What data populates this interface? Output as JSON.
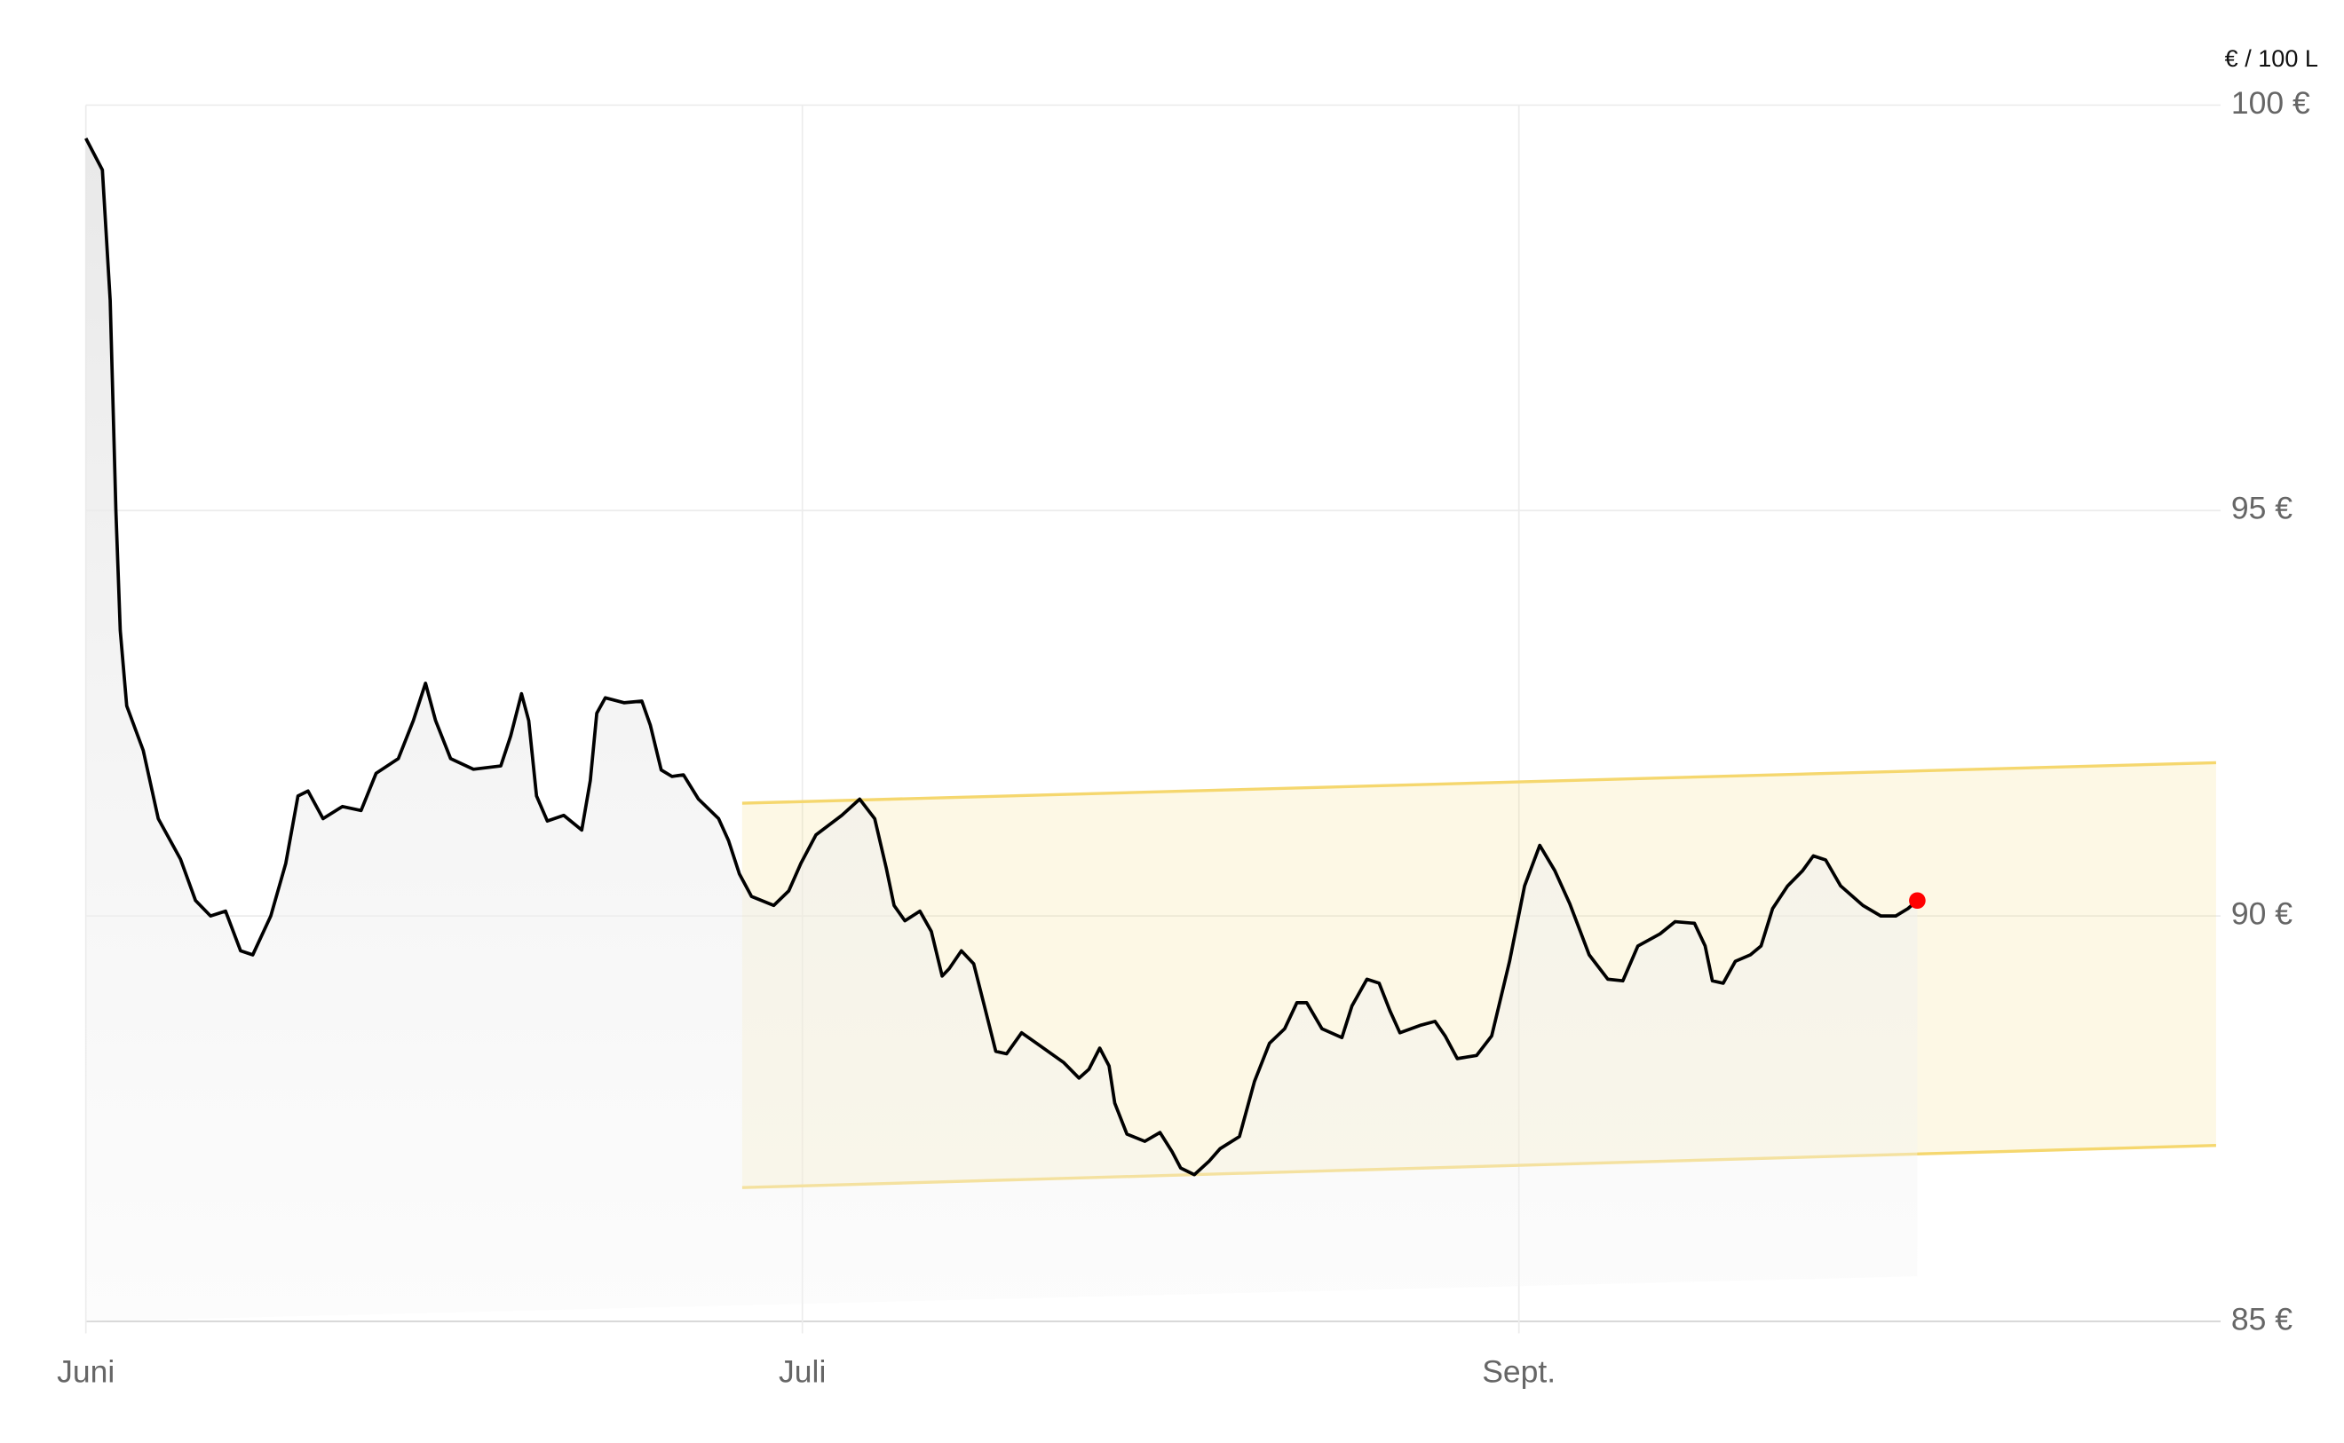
{
  "chart_data": {
    "type": "line",
    "unit_label": "€ / 100 L",
    "xlim": [
      0,
      2.973
    ],
    "xticks": [
      {
        "value": 0,
        "label": "Juni"
      },
      {
        "value": 1,
        "label": "Juli"
      },
      {
        "value": 2,
        "label": "Sept."
      }
    ],
    "ylim": [
      85,
      100
    ],
    "yticks": [
      {
        "value": 100,
        "label": "100 €"
      },
      {
        "value": 95,
        "label": "95 €"
      },
      {
        "value": 90,
        "label": "90 €"
      },
      {
        "value": 85,
        "label": "85 €"
      }
    ],
    "grid": true,
    "x": [
      0,
      0.023,
      0.034,
      0.042,
      0.048,
      0.057,
      0.08,
      0.101,
      0.132,
      0.153,
      0.174,
      0.195,
      0.216,
      0.233,
      0.258,
      0.279,
      0.296,
      0.31,
      0.331,
      0.358,
      0.384,
      0.405,
      0.436,
      0.457,
      0.474,
      0.488,
      0.509,
      0.541,
      0.579,
      0.593,
      0.608,
      0.618,
      0.629,
      0.644,
      0.667,
      0.692,
      0.704,
      0.713,
      0.725,
      0.751,
      0.776,
      0.788,
      0.803,
      0.818,
      0.834,
      0.855,
      0.883,
      0.897,
      0.912,
      0.929,
      0.96,
      0.981,
      0.998,
      1.019,
      1.055,
      1.08,
      1.101,
      1.117,
      1.128,
      1.143,
      1.164,
      1.18,
      1.195,
      1.205,
      1.222,
      1.239,
      1.254,
      1.27,
      1.285,
      1.306,
      1.327,
      1.365,
      1.386,
      1.4,
      1.415,
      1.428,
      1.436,
      1.453,
      1.478,
      1.499,
      1.516,
      1.528,
      1.547,
      1.568,
      1.583,
      1.61,
      1.631,
      1.652,
      1.673,
      1.69,
      1.704,
      1.725,
      1.753,
      1.767,
      1.788,
      1.805,
      1.82,
      1.834,
      1.862,
      1.883,
      1.897,
      1.914,
      1.941,
      1.962,
      1.987,
      2.008,
      2.029,
      2.05,
      2.071,
      2.098,
      2.124,
      2.145,
      2.166,
      2.197,
      2.218,
      2.245,
      2.26,
      2.27,
      2.285,
      2.302,
      2.323,
      2.338,
      2.354,
      2.375,
      2.396,
      2.411,
      2.428,
      2.449,
      2.48,
      2.505,
      2.526,
      2.543,
      2.556
    ],
    "series": [
      {
        "color": "#000000",
        "last_point_color": "#ff0000",
        "values": [
          99.59,
          99.2,
          97.59,
          95.0,
          93.52,
          92.59,
          92.04,
          91.2,
          90.7,
          90.19,
          90.0,
          90.06,
          89.57,
          89.52,
          90.0,
          90.65,
          91.48,
          91.54,
          91.2,
          91.35,
          91.3,
          91.76,
          91.94,
          92.41,
          92.87,
          92.41,
          91.94,
          91.81,
          91.85,
          92.22,
          92.74,
          92.41,
          91.48,
          91.17,
          91.24,
          91.06,
          91.67,
          92.5,
          92.69,
          92.63,
          92.65,
          92.35,
          91.8,
          91.72,
          91.74,
          91.44,
          91.2,
          90.93,
          90.52,
          90.24,
          90.13,
          90.31,
          90.65,
          91.0,
          91.24,
          91.44,
          91.2,
          90.59,
          90.13,
          89.94,
          90.06,
          89.81,
          89.26,
          89.35,
          89.57,
          89.41,
          88.89,
          88.33,
          88.3,
          88.56,
          88.43,
          88.19,
          88.0,
          88.11,
          88.37,
          88.15,
          87.69,
          87.31,
          87.22,
          87.33,
          87.09,
          86.89,
          86.81,
          86.98,
          87.13,
          87.28,
          87.96,
          88.43,
          88.61,
          88.93,
          88.93,
          88.61,
          88.5,
          88.89,
          89.22,
          89.17,
          88.83,
          88.56,
          88.65,
          88.7,
          88.52,
          88.24,
          88.28,
          88.52,
          89.44,
          90.37,
          90.87,
          90.56,
          90.15,
          89.52,
          89.22,
          89.2,
          89.63,
          89.78,
          89.93,
          89.91,
          89.63,
          89.2,
          89.17,
          89.44,
          89.52,
          89.63,
          90.09,
          90.37,
          90.56,
          90.74,
          90.69,
          90.37,
          90.13,
          90.0,
          90.0,
          90.09,
          90.19
        ]
      }
    ],
    "band": {
      "color": "#f5d76e",
      "x": [
        0.916,
        2.973
      ],
      "upper": [
        91.39,
        91.89
      ],
      "lower": [
        86.65,
        87.17
      ]
    }
  }
}
